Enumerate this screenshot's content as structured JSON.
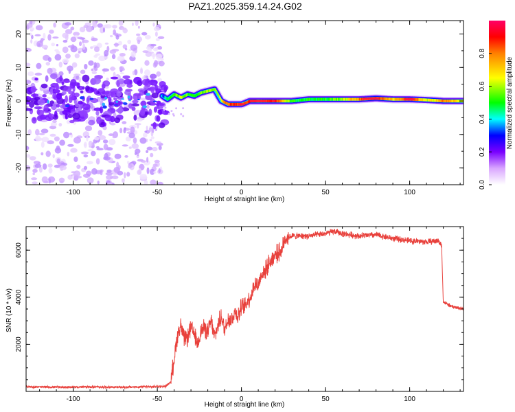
{
  "chart_data": [
    {
      "type": "heatmap",
      "title": "PAZ1.2025.359.14.24.G02",
      "xlabel": "Height of straight line (km)",
      "ylabel": "Frequency (Hz)",
      "xlim": [
        -128,
        132
      ],
      "ylim": [
        -25,
        24
      ],
      "xticks": [
        -100,
        -50,
        0,
        50,
        100
      ],
      "yticks": [
        20,
        10,
        0,
        -10,
        -20
      ],
      "colorbar": {
        "label": "Normalized spectral amplitude",
        "range": [
          0.0,
          1.0
        ],
        "ticks": [
          "0.0",
          "0.2",
          "0.4",
          "0.6",
          "0.8"
        ],
        "colors": [
          "#ffffff",
          "#cc66ff",
          "#6600ff",
          "#0000ff",
          "#00ffff",
          "#00ff00",
          "#ffff00",
          "#ff8000",
          "#ff0000",
          "#ff0066"
        ]
      },
      "ridge": {
        "description_x_km": [
          -47,
          -44,
          -40,
          -36,
          -32,
          -28,
          -24,
          -20,
          -16,
          -12,
          -8,
          -4,
          0,
          5,
          10,
          20,
          30,
          40,
          50,
          60,
          70,
          80,
          90,
          100,
          110,
          120,
          132
        ],
        "frequency_hz": [
          1.5,
          0.5,
          2,
          1,
          2,
          1.5,
          2.5,
          3,
          3.5,
          0,
          -1,
          -1,
          -1,
          0,
          0,
          0,
          0,
          0.5,
          0.5,
          0.5,
          0.5,
          0.8,
          0.5,
          0.5,
          0.3,
          0,
          0
        ],
        "amplitude": [
          0.3,
          0.5,
          0.55,
          0.6,
          0.55,
          0.5,
          0.55,
          0.6,
          0.6,
          0.7,
          0.85,
          0.9,
          0.8,
          0.9,
          0.85,
          0.9,
          0.5,
          0.5,
          0.5,
          0.6,
          0.8,
          0.9,
          0.7,
          0.9,
          0.6,
          0.8,
          0.6
        ]
      },
      "noise_region_x_km": [
        -128,
        -47
      ]
    },
    {
      "type": "line",
      "xlabel": "Height of straight line (km)",
      "ylabel": "SNR (10 * v/v)",
      "xlim": [
        -128,
        132
      ],
      "ylim": [
        0,
        7000
      ],
      "xticks": [
        -100,
        -50,
        0,
        50,
        100
      ],
      "yticks": [
        2000,
        4000,
        6000
      ],
      "color": "#e8413c",
      "series": [
        {
          "name": "SNR",
          "x": [
            -128,
            -110,
            -90,
            -70,
            -50,
            -45,
            -42,
            -40,
            -38,
            -36,
            -34,
            -32,
            -30,
            -28,
            -26,
            -24,
            -22,
            -20,
            -18,
            -16,
            -14,
            -12,
            -10,
            -8,
            -6,
            -4,
            -2,
            0,
            2,
            4,
            6,
            8,
            10,
            12,
            14,
            16,
            18,
            20,
            22,
            24,
            26,
            30,
            40,
            50,
            55,
            60,
            70,
            80,
            90,
            100,
            110,
            117,
            118,
            119,
            120,
            125,
            132
          ],
          "y": [
            200,
            180,
            190,
            180,
            200,
            220,
            400,
            1400,
            2400,
            2800,
            2200,
            2300,
            2700,
            2400,
            2000,
            2600,
            2700,
            2500,
            3000,
            2300,
            2800,
            3200,
            2600,
            3100,
            3000,
            3400,
            3200,
            3600,
            3600,
            3900,
            4100,
            4600,
            4500,
            5000,
            5100,
            5400,
            5600,
            5800,
            5900,
            6000,
            6500,
            6600,
            6600,
            6700,
            6800,
            6700,
            6600,
            6650,
            6500,
            6400,
            6350,
            6400,
            6300,
            6200,
            3800,
            3600,
            3500
          ]
        }
      ]
    }
  ]
}
